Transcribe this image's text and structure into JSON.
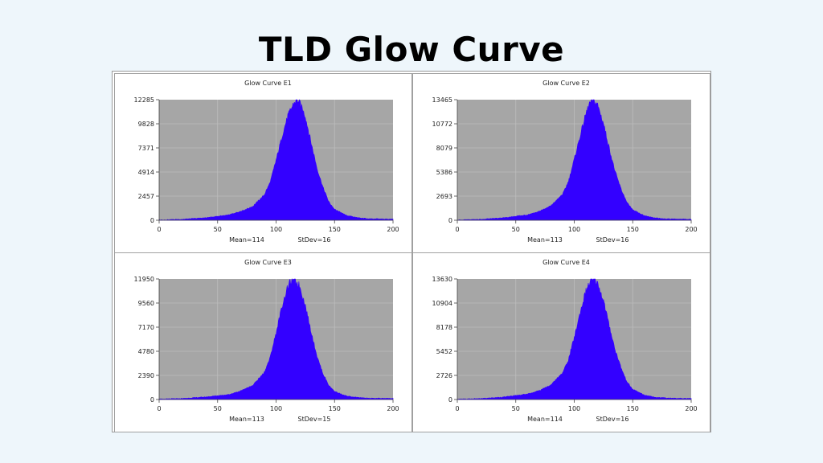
{
  "page": {
    "title": "TLD Glow Curve"
  },
  "chart_data": [
    {
      "type": "area",
      "title": "Glow Curve E1",
      "xlim": [
        0,
        200
      ],
      "ylim": [
        0,
        12285
      ],
      "xticks": [
        "0",
        "50",
        "100",
        "150",
        "200"
      ],
      "yticks": [
        "0",
        "2457",
        "4914",
        "7371",
        "9828",
        "12285"
      ],
      "grid": true,
      "series": [
        {
          "color": "#3300ff",
          "mean": 114,
          "stdev": 16,
          "peak": 12285,
          "x": [
            0,
            20,
            40,
            60,
            70,
            80,
            90,
            95,
            100,
            105,
            110,
            115,
            118,
            120,
            125,
            130,
            135,
            140,
            145,
            150,
            160,
            170,
            180,
            200
          ],
          "y": [
            30,
            100,
            250,
            550,
            900,
            1400,
            2600,
            3900,
            6100,
            8500,
            10600,
            11900,
            12285,
            12050,
            10600,
            7900,
            5300,
            3400,
            1900,
            1100,
            500,
            250,
            150,
            100
          ]
        }
      ],
      "annotations": [
        "Mean=114",
        "StDev=16"
      ]
    },
    {
      "type": "area",
      "title": "Glow Curve E2",
      "xlim": [
        0,
        200
      ],
      "ylim": [
        0,
        13465
      ],
      "xticks": [
        "0",
        "50",
        "100",
        "150",
        "200"
      ],
      "yticks": [
        "0",
        "2693",
        "5386",
        "8079",
        "10772",
        "13465"
      ],
      "grid": true,
      "series": [
        {
          "color": "#3300ff",
          "mean": 113,
          "stdev": 16,
          "peak": 13465,
          "x": [
            0,
            20,
            40,
            60,
            70,
            80,
            90,
            95,
            100,
            105,
            110,
            113,
            116,
            120,
            125,
            130,
            135,
            140,
            145,
            150,
            160,
            170,
            180,
            200
          ],
          "y": [
            30,
            100,
            280,
            600,
            1000,
            1600,
            2900,
            4300,
            6800,
            9400,
            11900,
            13000,
            13465,
            12900,
            10800,
            8000,
            5400,
            3500,
            2000,
            1150,
            500,
            250,
            150,
            100
          ]
        }
      ],
      "annotations": [
        "Mean=113",
        "StDev=16"
      ]
    },
    {
      "type": "area",
      "title": "Glow Curve E3",
      "xlim": [
        0,
        200
      ],
      "ylim": [
        0,
        11950
      ],
      "xticks": [
        "0",
        "50",
        "100",
        "150",
        "200"
      ],
      "yticks": [
        "0",
        "2390",
        "4780",
        "7170",
        "9560",
        "11950"
      ],
      "grid": true,
      "series": [
        {
          "color": "#3300ff",
          "mean": 113,
          "stdev": 15,
          "peak": 11950,
          "x": [
            0,
            20,
            40,
            60,
            70,
            80,
            90,
            95,
            100,
            105,
            110,
            113,
            115,
            120,
            125,
            130,
            135,
            140,
            145,
            150,
            160,
            170,
            180,
            200
          ],
          "y": [
            30,
            100,
            250,
            500,
            850,
            1400,
            2700,
            4200,
            6600,
            9200,
            11200,
            11800,
            11950,
            11300,
            9300,
            6700,
            4300,
            2600,
            1400,
            800,
            350,
            200,
            130,
            100
          ]
        }
      ],
      "annotations": [
        "Mean=113",
        "StDev=15"
      ]
    },
    {
      "type": "area",
      "title": "Glow Curve E4",
      "xlim": [
        0,
        200
      ],
      "ylim": [
        0,
        13630
      ],
      "xticks": [
        "0",
        "50",
        "100",
        "150",
        "200"
      ],
      "yticks": [
        "0",
        "2726",
        "5452",
        "8178",
        "10904",
        "13630"
      ],
      "grid": true,
      "series": [
        {
          "color": "#3300ff",
          "mean": 114,
          "stdev": 16,
          "peak": 13630,
          "x": [
            0,
            20,
            40,
            60,
            70,
            80,
            90,
            95,
            100,
            105,
            110,
            114,
            117,
            120,
            125,
            130,
            135,
            140,
            145,
            150,
            160,
            170,
            180,
            200
          ],
          "y": [
            30,
            100,
            280,
            620,
            1000,
            1650,
            3000,
            4500,
            7000,
            9800,
            12300,
            13400,
            13630,
            13100,
            11200,
            8300,
            5600,
            3600,
            2000,
            1150,
            500,
            250,
            160,
            100
          ]
        }
      ],
      "annotations": [
        "Mean=114",
        "StDev=16"
      ]
    }
  ],
  "colors": {
    "plot_background": "#a6a6a6",
    "fill": "#3300ff",
    "gridline": "#bdbdbd"
  }
}
